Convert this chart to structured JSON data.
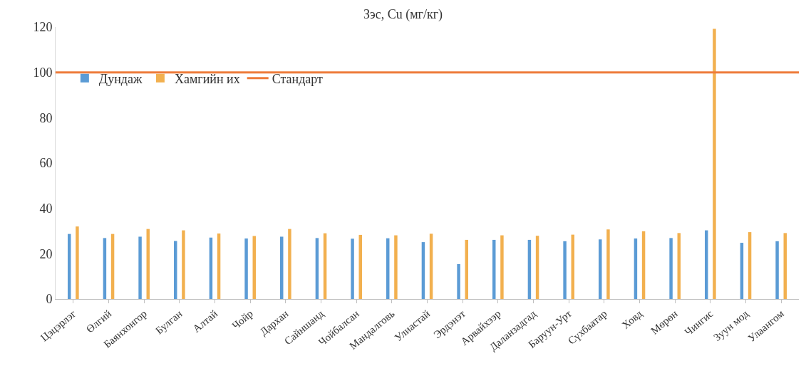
{
  "chart_data": {
    "type": "bar",
    "title": "Зэс, Cu (мг/кг)",
    "categories": [
      "Цэцэрлэг",
      "Өлгий",
      "Баянхонгор",
      "Булган",
      "Алтай",
      "Чойр",
      "Дархан",
      "Сайншанд",
      "Чойбалсан",
      "Мандалговь",
      "Улиастай",
      "Эрдэнэт",
      "Арвайхээр",
      "Даланзадгад",
      "Баруун-Урт",
      "Сүхбаатар",
      "Ховд",
      "Мөрөн",
      "Чингис",
      "Зуун мод",
      "Улаангом"
    ],
    "series": [
      {
        "name": "Дундаж",
        "color": "#5b9bd5",
        "values": [
          28.7,
          26.9,
          27.5,
          25.6,
          27.1,
          26.7,
          27.5,
          26.9,
          26.6,
          26.8,
          25.1,
          15.4,
          26.1,
          26.1,
          25.5,
          26.3,
          26.7,
          26.9,
          30.3,
          24.8,
          25.5
        ]
      },
      {
        "name": "Хамгийн их",
        "color": "#f2b04f",
        "values": [
          32.0,
          28.7,
          30.9,
          30.3,
          28.9,
          27.8,
          30.9,
          29.0,
          28.3,
          28.1,
          28.8,
          26.1,
          28.1,
          27.9,
          28.4,
          30.7,
          29.9,
          29.1,
          119.2,
          29.5,
          29.1
        ]
      }
    ],
    "ref_lines": [
      {
        "axis": "y",
        "value": 100,
        "label": "Стандарт",
        "color": "#ee7b3a",
        "line_style": "solid"
      }
    ],
    "ylim": [
      0,
      120
    ],
    "yticks": [
      0,
      20,
      40,
      60,
      80,
      100,
      120
    ],
    "grid": false,
    "legend": "top left"
  }
}
